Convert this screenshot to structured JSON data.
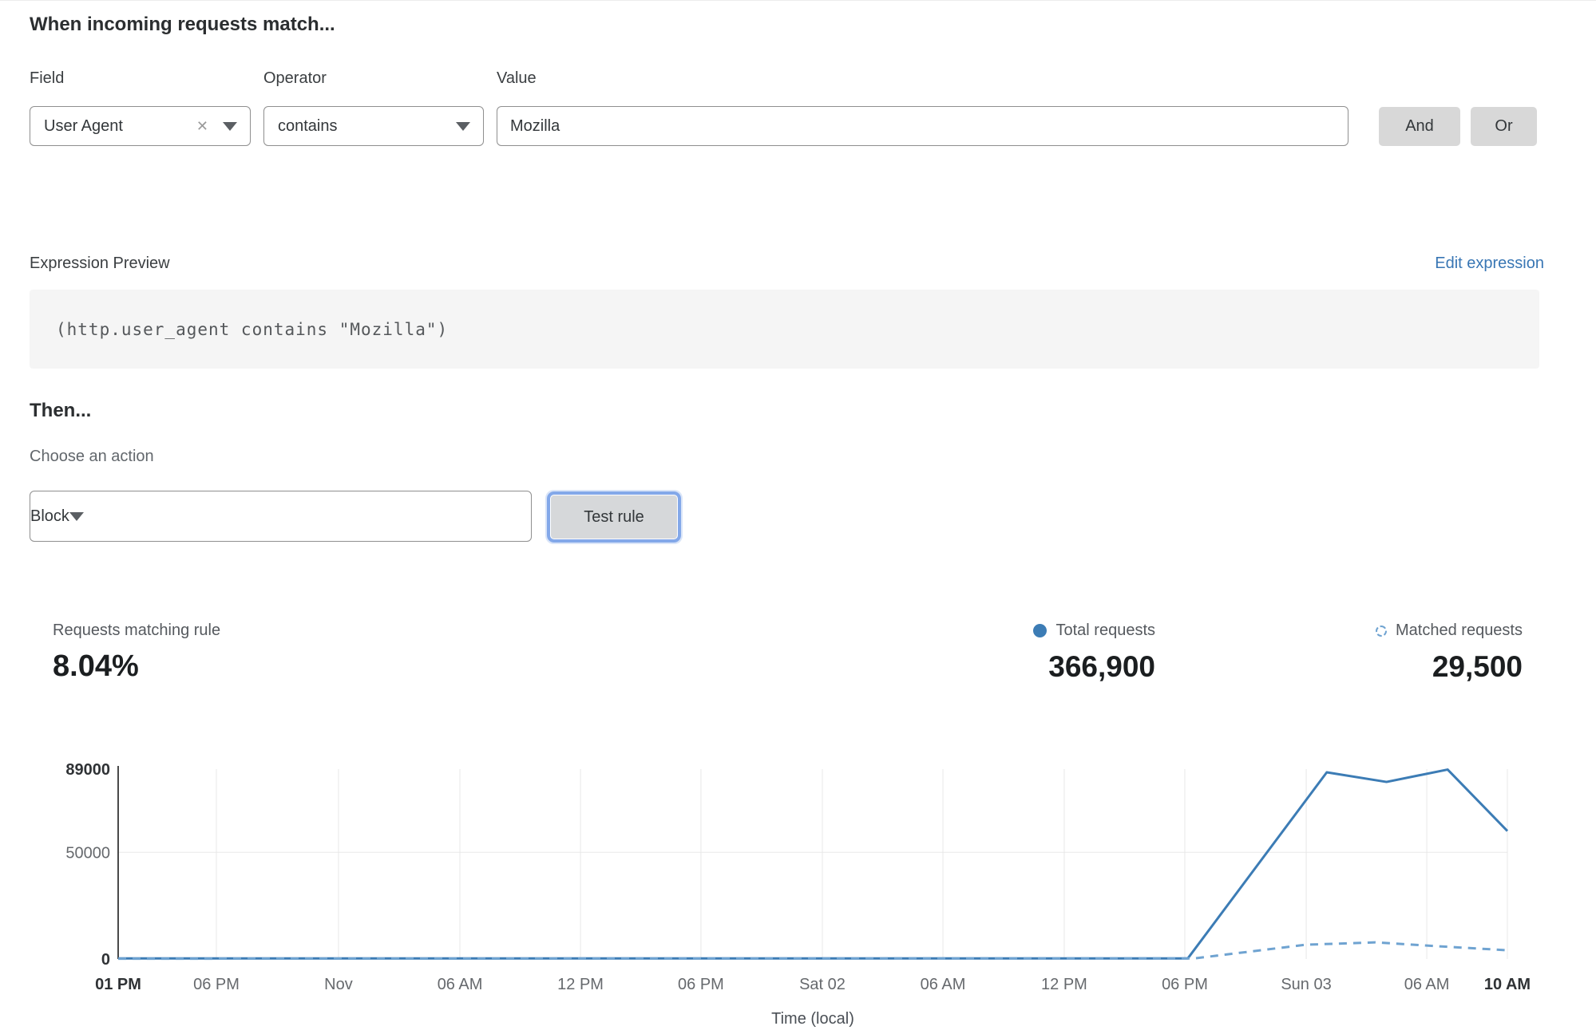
{
  "header": {
    "title": "When incoming requests match..."
  },
  "rule_builder": {
    "field": {
      "label": "Field",
      "value": "User Agent"
    },
    "operator": {
      "label": "Operator",
      "value": "contains"
    },
    "value": {
      "label": "Value",
      "value": "Mozilla"
    },
    "and_label": "And",
    "or_label": "Or"
  },
  "expression": {
    "label": "Expression Preview",
    "edit_link": "Edit expression",
    "code": "(http.user_agent contains \"Mozilla\")"
  },
  "then": {
    "title": "Then...",
    "action_label": "Choose an action",
    "action_value": "Block",
    "test_button": "Test rule"
  },
  "stats": {
    "matching": {
      "label": "Requests matching rule",
      "value": "8.04%"
    },
    "total": {
      "label": "Total requests",
      "value": "366,900"
    },
    "matched": {
      "label": "Matched requests",
      "value": "29,500"
    }
  },
  "colors": {
    "accent_blue": "#3c7cb5",
    "light_blue": "#6fa3d1",
    "link_blue": "#3876b4",
    "button_gray": "#d8d8d8",
    "grid_gray": "#e8e8e8"
  },
  "chart_data": {
    "type": "line",
    "title": "",
    "xlabel": "Time (local)",
    "ylabel": "",
    "ylim": [
      0,
      89000
    ],
    "grid": true,
    "legend_position": "top-right",
    "y_ticks": [
      {
        "value": 89000,
        "label": "89000",
        "bold": true,
        "gridline": false
      },
      {
        "value": 50000,
        "label": "50000",
        "bold": false,
        "gridline": true
      },
      {
        "value": 0,
        "label": "0",
        "bold": true,
        "gridline": false
      }
    ],
    "x_ticks": [
      {
        "label": "01 PM",
        "pos": 0.0,
        "bold": true
      },
      {
        "label": "06 PM",
        "pos": 0.0707,
        "bold": false
      },
      {
        "label": "Nov",
        "pos": 0.1586,
        "bold": false
      },
      {
        "label": "06 AM",
        "pos": 0.246,
        "bold": false
      },
      {
        "label": "12 PM",
        "pos": 0.3328,
        "bold": false
      },
      {
        "label": "06 PM",
        "pos": 0.4195,
        "bold": false
      },
      {
        "label": "Sat 02",
        "pos": 0.5069,
        "bold": false
      },
      {
        "label": "06 AM",
        "pos": 0.5937,
        "bold": false
      },
      {
        "label": "12 PM",
        "pos": 0.681,
        "bold": false
      },
      {
        "label": "06 PM",
        "pos": 0.7678,
        "bold": false
      },
      {
        "label": "Sun 03",
        "pos": 0.8552,
        "bold": false
      },
      {
        "label": "06 AM",
        "pos": 0.942,
        "bold": false
      },
      {
        "label": "10 AM",
        "pos": 1.0,
        "bold": true
      }
    ],
    "series": [
      {
        "name": "Total requests",
        "style": "solid",
        "color": "#3c7cb5",
        "points": [
          {
            "x": 0.0,
            "y": 300
          },
          {
            "x": 0.77,
            "y": 300
          },
          {
            "x": 0.87,
            "y": 87500
          },
          {
            "x": 0.913,
            "y": 83000
          },
          {
            "x": 0.957,
            "y": 88800
          },
          {
            "x": 1.0,
            "y": 60000
          }
        ]
      },
      {
        "name": "Matched requests",
        "style": "dashed",
        "color": "#6fa3d1",
        "points": [
          {
            "x": 0.0,
            "y": 150
          },
          {
            "x": 0.775,
            "y": 300
          },
          {
            "x": 0.855,
            "y": 6700
          },
          {
            "x": 0.905,
            "y": 7800
          },
          {
            "x": 0.942,
            "y": 6300
          },
          {
            "x": 1.0,
            "y": 4100
          }
        ]
      }
    ]
  }
}
